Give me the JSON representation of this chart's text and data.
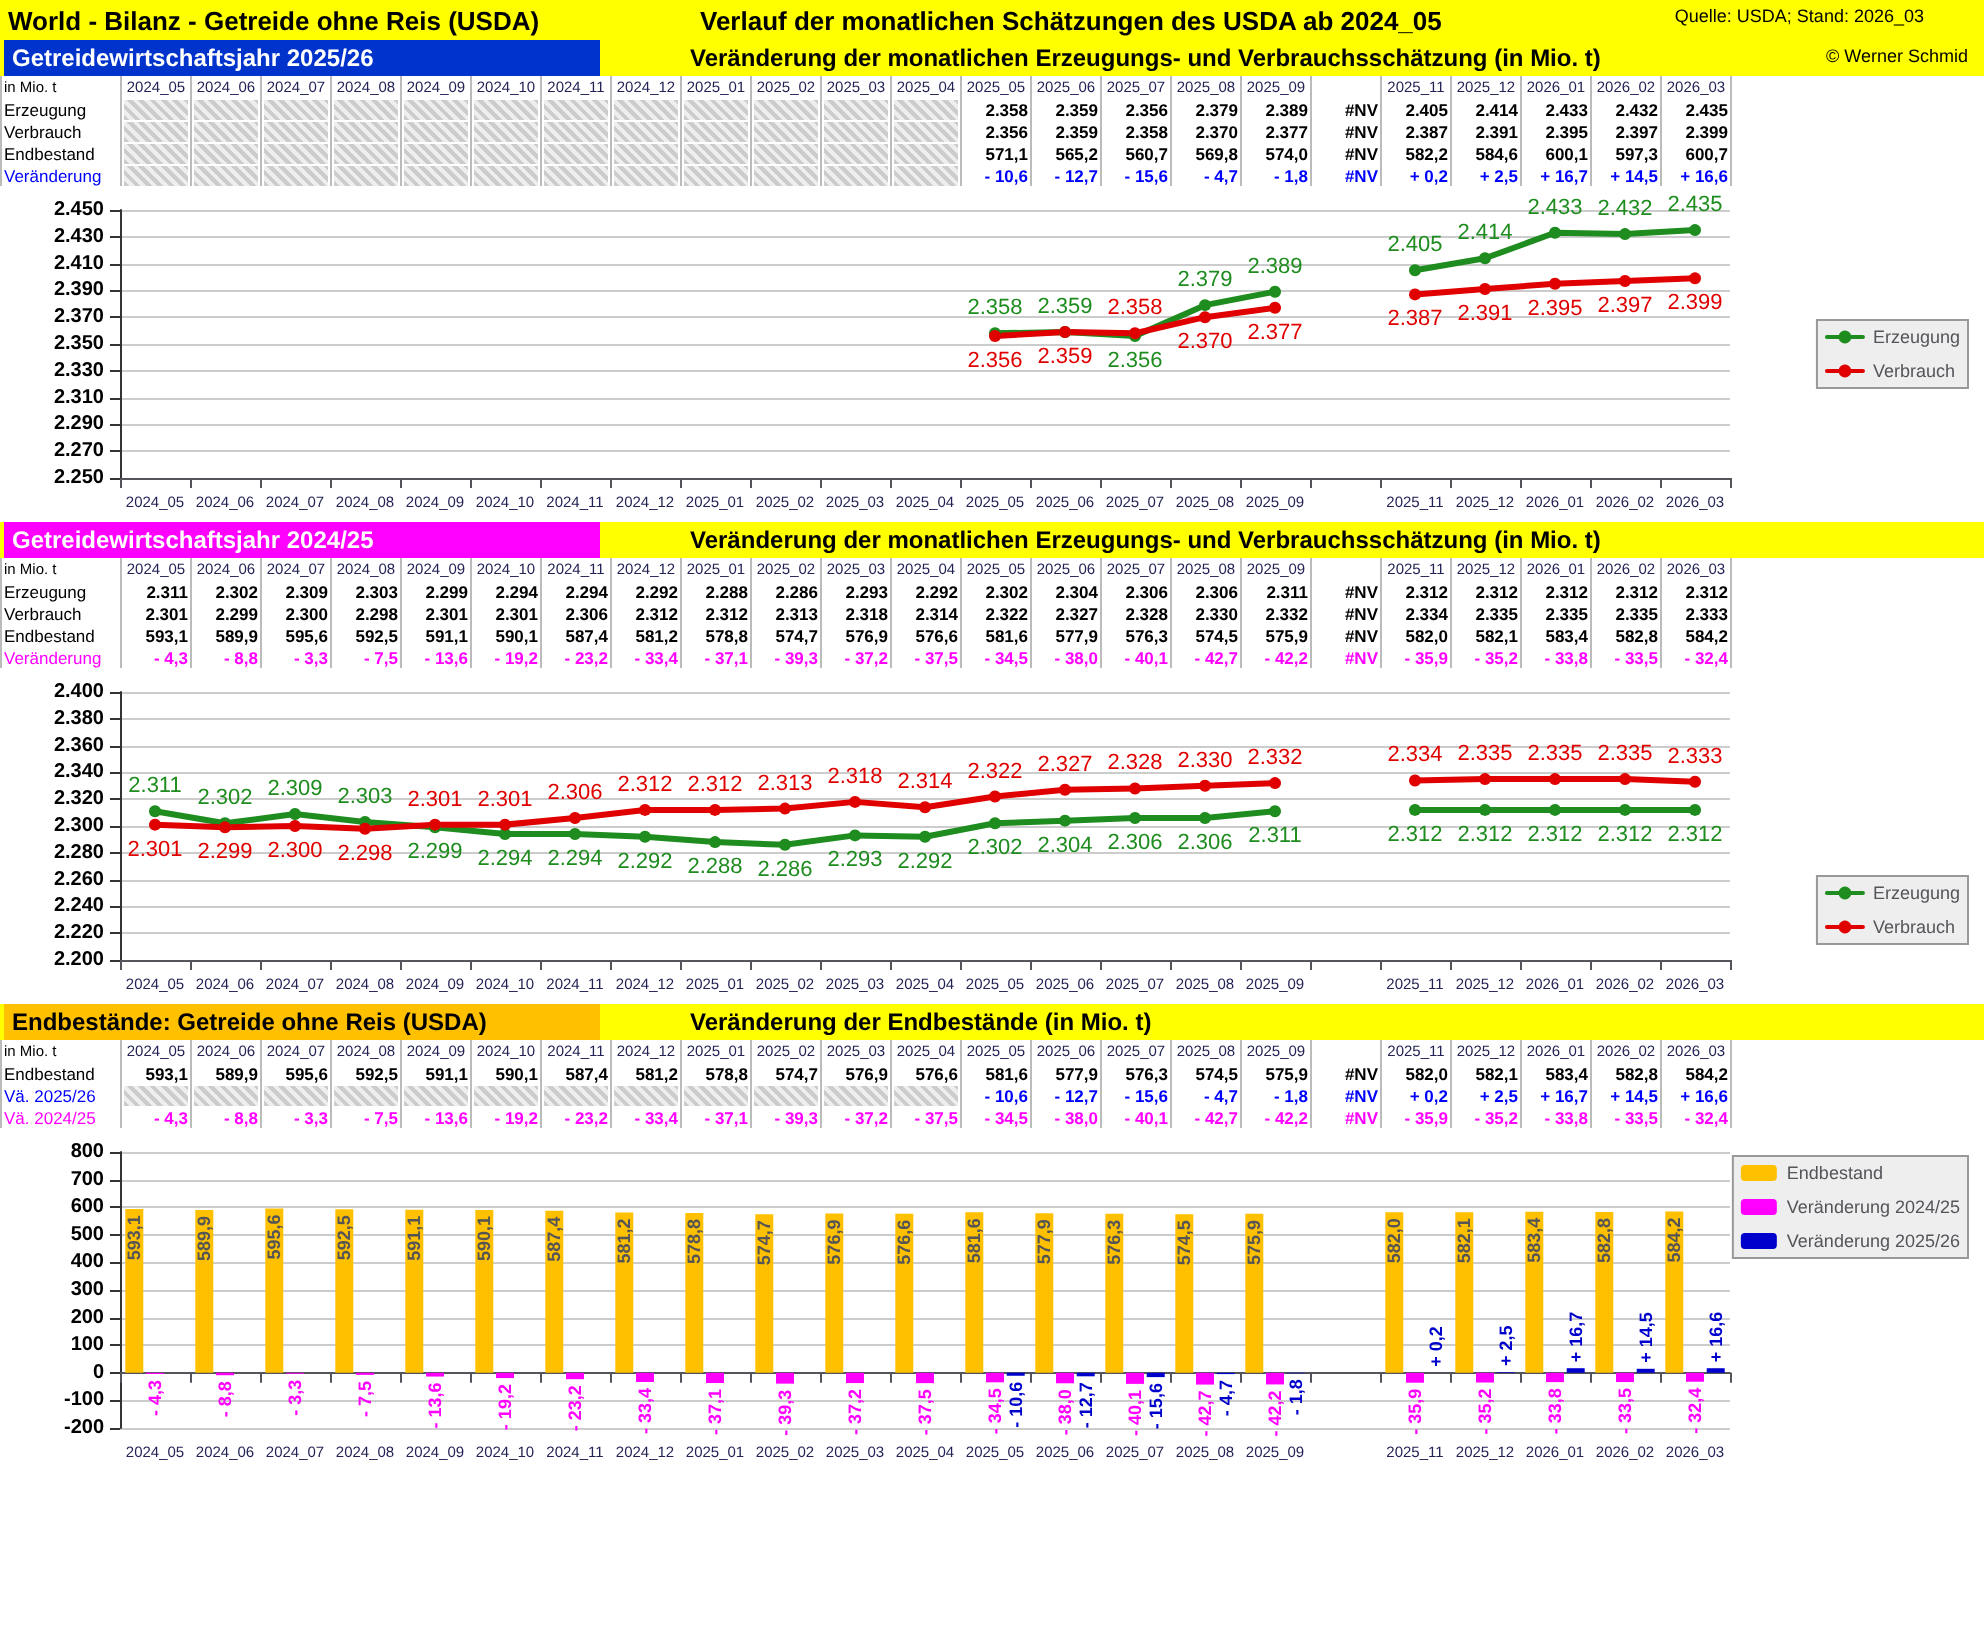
{
  "chart_data": [
    {
      "type": "other",
      "title": "Getreidewirtschaftsjahr 2025/26",
      "subtitle": "Veränderung der monatlichen Erzeugungs- und Verbrauchsschätzung (in Mio. t)",
      "ylabel": "in Mio. t",
      "annotations": [
        "World - Bilanz - Getreide ohne Reis (USDA)",
        "Verlauf der monatlichen Schätzungen des USDA ab 2024_05",
        "Quelle: USDA;  Stand: 2026_03",
        "© Werner Schmid"
      ],
      "categories": [
        "2024_05",
        "2024_06",
        "2024_07",
        "2024_08",
        "2024_09",
        "2024_10",
        "2024_11",
        "2024_12",
        "2025_01",
        "2025_02",
        "2025_03",
        "2025_04",
        "2025_05",
        "2025_06",
        "2025_07",
        "2025_08",
        "2025_09",
        null,
        "2025_11",
        "2025_12",
        "2026_01",
        "2026_02",
        "2026_03"
      ],
      "series": [
        {
          "name": "Erzeugung",
          "color": "#000000",
          "values": [
            null,
            null,
            null,
            null,
            null,
            null,
            null,
            null,
            null,
            null,
            null,
            null,
            2358,
            2359,
            2356,
            2379,
            2389,
            null,
            2405,
            2414,
            2433,
            2432,
            2435
          ],
          "value_labels": [
            null,
            null,
            null,
            null,
            null,
            null,
            null,
            null,
            null,
            null,
            null,
            null,
            "2.358",
            "2.359",
            "2.356",
            "2.379",
            "2.389",
            "#NV",
            "2.405",
            "2.414",
            "2.433",
            "2.432",
            "2.435"
          ]
        },
        {
          "name": "Verbrauch",
          "color": "#000000",
          "values": [
            null,
            null,
            null,
            null,
            null,
            null,
            null,
            null,
            null,
            null,
            null,
            null,
            2356,
            2359,
            2358,
            2370,
            2377,
            null,
            2387,
            2391,
            2395,
            2397,
            2399
          ],
          "value_labels": [
            null,
            null,
            null,
            null,
            null,
            null,
            null,
            null,
            null,
            null,
            null,
            null,
            "2.356",
            "2.359",
            "2.358",
            "2.370",
            "2.377",
            "#NV",
            "2.387",
            "2.391",
            "2.395",
            "2.397",
            "2.399"
          ]
        },
        {
          "name": "Endbestand",
          "color": "#000000",
          "values": [
            null,
            null,
            null,
            null,
            null,
            null,
            null,
            null,
            null,
            null,
            null,
            null,
            571.1,
            565.2,
            560.7,
            569.8,
            574.0,
            null,
            582.2,
            584.6,
            600.1,
            597.3,
            600.7
          ],
          "value_labels": [
            null,
            null,
            null,
            null,
            null,
            null,
            null,
            null,
            null,
            null,
            null,
            null,
            "571,1",
            "565,2",
            "560,7",
            "569,8",
            "574,0",
            "#NV",
            "582,2",
            "584,6",
            "600,1",
            "597,3",
            "600,7"
          ]
        },
        {
          "name": "Veränderung",
          "color": "#0000ff",
          "values": [
            null,
            null,
            null,
            null,
            null,
            null,
            null,
            null,
            null,
            null,
            null,
            null,
            -10.6,
            -12.7,
            -15.6,
            -4.7,
            -1.8,
            null,
            0.2,
            2.5,
            16.7,
            14.5,
            16.6
          ],
          "value_labels": [
            null,
            null,
            null,
            null,
            null,
            null,
            null,
            null,
            null,
            null,
            null,
            null,
            "- 10,6",
            "- 12,7",
            "- 15,6",
            "- 4,7",
            "- 1,8",
            "#NV",
            "+ 0,2",
            "+ 2,5",
            "+ 16,7",
            "+ 14,5",
            "+ 16,6"
          ]
        }
      ]
    },
    {
      "type": "line",
      "categories": [
        "2024_05",
        "2024_06",
        "2024_07",
        "2024_08",
        "2024_09",
        "2024_10",
        "2024_11",
        "2024_12",
        "2025_01",
        "2025_02",
        "2025_03",
        "2025_04",
        "2025_05",
        "2025_06",
        "2025_07",
        "2025_08",
        "2025_09",
        null,
        "2025_11",
        "2025_12",
        "2026_01",
        "2026_02",
        "2026_03"
      ],
      "series": [
        {
          "name": "Erzeugung",
          "color": "#1e8c1e",
          "values": [
            null,
            null,
            null,
            null,
            null,
            null,
            null,
            null,
            null,
            null,
            null,
            null,
            2358,
            2359,
            2356,
            2379,
            2389,
            null,
            2405,
            2414,
            2433,
            2432,
            2435
          ],
          "value_labels": [
            null,
            null,
            null,
            null,
            null,
            null,
            null,
            null,
            null,
            null,
            null,
            null,
            "2.358",
            "2.359",
            "2.356",
            "2.379",
            "2.389",
            null,
            "2.405",
            "2.414",
            "2.433",
            "2.432",
            "2.435"
          ]
        },
        {
          "name": "Verbrauch",
          "color": "#e00000",
          "values": [
            null,
            null,
            null,
            null,
            null,
            null,
            null,
            null,
            null,
            null,
            null,
            null,
            2356,
            2359,
            2358,
            2370,
            2377,
            null,
            2387,
            2391,
            2395,
            2397,
            2399
          ],
          "value_labels": [
            null,
            null,
            null,
            null,
            null,
            null,
            null,
            null,
            null,
            null,
            null,
            null,
            "2.356",
            "2.359",
            "2.358",
            "2.370",
            "2.377",
            null,
            "2.387",
            "2.391",
            "2.395",
            "2.397",
            "2.399"
          ]
        }
      ],
      "ylim": [
        2250,
        2450
      ],
      "yticks": [
        {
          "value": 2250,
          "label": "2.250"
        },
        {
          "value": 2270,
          "label": "2.270"
        },
        {
          "value": 2290,
          "label": "2.290"
        },
        {
          "value": 2310,
          "label": "2.310"
        },
        {
          "value": 2330,
          "label": "2.330"
        },
        {
          "value": 2350,
          "label": "2.350"
        },
        {
          "value": 2370,
          "label": "2.370"
        },
        {
          "value": 2390,
          "label": "2.390"
        },
        {
          "value": 2410,
          "label": "2.410"
        },
        {
          "value": 2430,
          "label": "2.430"
        },
        {
          "value": 2450,
          "label": "2.450"
        }
      ],
      "grid": "y",
      "legend": "right",
      "marker": "circle"
    },
    {
      "type": "other",
      "title": "Getreidewirtschaftsjahr 2024/25",
      "subtitle": "Veränderung der monatlichen Erzeugungs- und Verbrauchsschätzung (in Mio. t)",
      "ylabel": "in Mio. t",
      "categories": [
        "2024_05",
        "2024_06",
        "2024_07",
        "2024_08",
        "2024_09",
        "2024_10",
        "2024_11",
        "2024_12",
        "2025_01",
        "2025_02",
        "2025_03",
        "2025_04",
        "2025_05",
        "2025_06",
        "2025_07",
        "2025_08",
        "2025_09",
        null,
        "2025_11",
        "2025_12",
        "2026_01",
        "2026_02",
        "2026_03"
      ],
      "series": [
        {
          "name": "Erzeugung",
          "color": "#000000",
          "values": [
            2311,
            2302,
            2309,
            2303,
            2299,
            2294,
            2294,
            2292,
            2288,
            2286,
            2293,
            2292,
            2302,
            2304,
            2306,
            2306,
            2311,
            null,
            2312,
            2312,
            2312,
            2312,
            2312
          ],
          "value_labels": [
            "2.311",
            "2.302",
            "2.309",
            "2.303",
            "2.299",
            "2.294",
            "2.294",
            "2.292",
            "2.288",
            "2.286",
            "2.293",
            "2.292",
            "2.302",
            "2.304",
            "2.306",
            "2.306",
            "2.311",
            "#NV",
            "2.312",
            "2.312",
            "2.312",
            "2.312",
            "2.312"
          ]
        },
        {
          "name": "Verbrauch",
          "color": "#000000",
          "values": [
            2301,
            2299,
            2300,
            2298,
            2301,
            2301,
            2306,
            2312,
            2312,
            2313,
            2318,
            2314,
            2322,
            2327,
            2328,
            2330,
            2332,
            null,
            2334,
            2335,
            2335,
            2335,
            2333
          ],
          "value_labels": [
            "2.301",
            "2.299",
            "2.300",
            "2.298",
            "2.301",
            "2.301",
            "2.306",
            "2.312",
            "2.312",
            "2.313",
            "2.318",
            "2.314",
            "2.322",
            "2.327",
            "2.328",
            "2.330",
            "2.332",
            "#NV",
            "2.334",
            "2.335",
            "2.335",
            "2.335",
            "2.333"
          ]
        },
        {
          "name": "Endbestand",
          "color": "#000000",
          "values": [
            593.1,
            589.9,
            595.6,
            592.5,
            591.1,
            590.1,
            587.4,
            581.2,
            578.8,
            574.7,
            576.9,
            576.6,
            581.6,
            577.9,
            576.3,
            574.5,
            575.9,
            null,
            582.0,
            582.1,
            583.4,
            582.8,
            584.2
          ],
          "value_labels": [
            "593,1",
            "589,9",
            "595,6",
            "592,5",
            "591,1",
            "590,1",
            "587,4",
            "581,2",
            "578,8",
            "574,7",
            "576,9",
            "576,6",
            "581,6",
            "577,9",
            "576,3",
            "574,5",
            "575,9",
            "#NV",
            "582,0",
            "582,1",
            "583,4",
            "582,8",
            "584,2"
          ]
        },
        {
          "name": "Veränderung",
          "color": "#ff00ff",
          "values": [
            -4.3,
            -8.8,
            -3.3,
            -7.5,
            -13.6,
            -19.2,
            -23.2,
            -33.4,
            -37.1,
            -39.3,
            -37.2,
            -37.5,
            -34.5,
            -38.0,
            -40.1,
            -42.7,
            -42.2,
            null,
            -35.9,
            -35.2,
            -33.8,
            -33.5,
            -32.4
          ],
          "value_labels": [
            "- 4,3",
            "- 8,8",
            "- 3,3",
            "- 7,5",
            "- 13,6",
            "- 19,2",
            "- 23,2",
            "- 33,4",
            "- 37,1",
            "- 39,3",
            "- 37,2",
            "- 37,5",
            "- 34,5",
            "- 38,0",
            "- 40,1",
            "- 42,7",
            "- 42,2",
            "#NV",
            "- 35,9",
            "- 35,2",
            "- 33,8",
            "- 33,5",
            "- 32,4"
          ]
        }
      ]
    },
    {
      "type": "line",
      "categories": [
        "2024_05",
        "2024_06",
        "2024_07",
        "2024_08",
        "2024_09",
        "2024_10",
        "2024_11",
        "2024_12",
        "2025_01",
        "2025_02",
        "2025_03",
        "2025_04",
        "2025_05",
        "2025_06",
        "2025_07",
        "2025_08",
        "2025_09",
        null,
        "2025_11",
        "2025_12",
        "2026_01",
        "2026_02",
        "2026_03"
      ],
      "series": [
        {
          "name": "Erzeugung",
          "color": "#1e8c1e",
          "values": [
            2311,
            2302,
            2309,
            2303,
            2299,
            2294,
            2294,
            2292,
            2288,
            2286,
            2293,
            2292,
            2302,
            2304,
            2306,
            2306,
            2311,
            null,
            2312,
            2312,
            2312,
            2312,
            2312
          ],
          "value_labels": [
            "2.311",
            "2.302",
            "2.309",
            "2.303",
            "2.299",
            "2.294",
            "2.294",
            "2.292",
            "2.288",
            "2.286",
            "2.293",
            "2.292",
            "2.302",
            "2.304",
            "2.306",
            "2.306",
            "2.311",
            null,
            "2.312",
            "2.312",
            "2.312",
            "2.312",
            "2.312"
          ]
        },
        {
          "name": "Verbrauch",
          "color": "#e00000",
          "values": [
            2301,
            2299,
            2300,
            2298,
            2301,
            2301,
            2306,
            2312,
            2312,
            2313,
            2318,
            2314,
            2322,
            2327,
            2328,
            2330,
            2332,
            null,
            2334,
            2335,
            2335,
            2335,
            2333
          ],
          "value_labels": [
            "2.301",
            "2.299",
            "2.300",
            "2.298",
            "2.301",
            "2.301",
            "2.306",
            "2.312",
            "2.312",
            "2.313",
            "2.318",
            "2.314",
            "2.322",
            "2.327",
            "2.328",
            "2.330",
            "2.332",
            null,
            "2.334",
            "2.335",
            "2.335",
            "2.335",
            "2.333"
          ]
        }
      ],
      "ylim": [
        2200,
        2400
      ],
      "yticks": [
        {
          "value": 2200,
          "label": "2.200"
        },
        {
          "value": 2220,
          "label": "2.220"
        },
        {
          "value": 2240,
          "label": "2.240"
        },
        {
          "value": 2260,
          "label": "2.260"
        },
        {
          "value": 2280,
          "label": "2.280"
        },
        {
          "value": 2300,
          "label": "2.300"
        },
        {
          "value": 2320,
          "label": "2.320"
        },
        {
          "value": 2340,
          "label": "2.340"
        },
        {
          "value": 2360,
          "label": "2.360"
        },
        {
          "value": 2380,
          "label": "2.380"
        },
        {
          "value": 2400,
          "label": "2.400"
        }
      ],
      "grid": "y",
      "legend": "bottom right",
      "marker": "circle"
    },
    {
      "type": "other",
      "title": "Endbestände: Getreide ohne Reis (USDA)",
      "subtitle": "Veränderung der Endbestände (in Mio. t)",
      "ylabel": "in Mio. t",
      "categories": [
        "2024_05",
        "2024_06",
        "2024_07",
        "2024_08",
        "2024_09",
        "2024_10",
        "2024_11",
        "2024_12",
        "2025_01",
        "2025_02",
        "2025_03",
        "2025_04",
        "2025_05",
        "2025_06",
        "2025_07",
        "2025_08",
        "2025_09",
        null,
        "2025_11",
        "2025_12",
        "2026_01",
        "2026_02",
        "2026_03"
      ],
      "series": [
        {
          "name": "Endbestand",
          "color": "#000000",
          "values": [
            593.1,
            589.9,
            595.6,
            592.5,
            591.1,
            590.1,
            587.4,
            581.2,
            578.8,
            574.7,
            576.9,
            576.6,
            581.6,
            577.9,
            576.3,
            574.5,
            575.9,
            null,
            582.0,
            582.1,
            583.4,
            582.8,
            584.2
          ],
          "value_labels": [
            "593,1",
            "589,9",
            "595,6",
            "592,5",
            "591,1",
            "590,1",
            "587,4",
            "581,2",
            "578,8",
            "574,7",
            "576,9",
            "576,6",
            "581,6",
            "577,9",
            "576,3",
            "574,5",
            "575,9",
            "#NV",
            "582,0",
            "582,1",
            "583,4",
            "582,8",
            "584,2"
          ]
        },
        {
          "name": "Vä. 2025/26",
          "color": "#0000ff",
          "values": [
            null,
            null,
            null,
            null,
            null,
            null,
            null,
            null,
            null,
            null,
            null,
            null,
            -10.6,
            -12.7,
            -15.6,
            -4.7,
            -1.8,
            null,
            0.2,
            2.5,
            16.7,
            14.5,
            16.6
          ],
          "value_labels": [
            null,
            null,
            null,
            null,
            null,
            null,
            null,
            null,
            null,
            null,
            null,
            null,
            "- 10,6",
            "- 12,7",
            "- 15,6",
            "- 4,7",
            "- 1,8",
            "#NV",
            "+ 0,2",
            "+ 2,5",
            "+ 16,7",
            "+ 14,5",
            "+ 16,6"
          ]
        },
        {
          "name": "Vä. 2024/25",
          "color": "#ff00ff",
          "values": [
            -4.3,
            -8.8,
            -3.3,
            -7.5,
            -13.6,
            -19.2,
            -23.2,
            -33.4,
            -37.1,
            -39.3,
            -37.2,
            -37.5,
            -34.5,
            -38.0,
            -40.1,
            -42.7,
            -42.2,
            null,
            -35.9,
            -35.2,
            -33.8,
            -33.5,
            -32.4
          ],
          "value_labels": [
            "- 4,3",
            "- 8,8",
            "- 3,3",
            "- 7,5",
            "- 13,6",
            "- 19,2",
            "- 23,2",
            "- 33,4",
            "- 37,1",
            "- 39,3",
            "- 37,2",
            "- 37,5",
            "- 34,5",
            "- 38,0",
            "- 40,1",
            "- 42,7",
            "- 42,2",
            "#NV",
            "- 35,9",
            "- 35,2",
            "- 33,8",
            "- 33,5",
            "- 32,4"
          ]
        }
      ]
    },
    {
      "type": "bar",
      "categories": [
        "2024_05",
        "2024_06",
        "2024_07",
        "2024_08",
        "2024_09",
        "2024_10",
        "2024_11",
        "2024_12",
        "2025_01",
        "2025_02",
        "2025_03",
        "2025_04",
        "2025_05",
        "2025_06",
        "2025_07",
        "2025_08",
        "2025_09",
        null,
        "2025_11",
        "2025_12",
        "2026_01",
        "2026_02",
        "2026_03"
      ],
      "series": [
        {
          "name": "Endbestand",
          "color": "#ffc000",
          "values": [
            593.1,
            589.9,
            595.6,
            592.5,
            591.1,
            590.1,
            587.4,
            581.2,
            578.8,
            574.7,
            576.9,
            576.6,
            581.6,
            577.9,
            576.3,
            574.5,
            575.9,
            null,
            582.0,
            582.1,
            583.4,
            582.8,
            584.2
          ],
          "value_labels": [
            "593,1",
            "589,9",
            "595,6",
            "592,5",
            "591,1",
            "590,1",
            "587,4",
            "581,2",
            "578,8",
            "574,7",
            "576,9",
            "576,6",
            "581,6",
            "577,9",
            "576,3",
            "574,5",
            "575,9",
            null,
            "582,0",
            "582,1",
            "583,4",
            "582,8",
            "584,2"
          ]
        },
        {
          "name": "Veränderung 2024/25",
          "color": "#ff00ff",
          "values": [
            -4.3,
            -8.8,
            -3.3,
            -7.5,
            -13.6,
            -19.2,
            -23.2,
            -33.4,
            -37.1,
            -39.3,
            -37.2,
            -37.5,
            -34.5,
            -38.0,
            -40.1,
            -42.7,
            -42.2,
            null,
            -35.9,
            -35.2,
            -33.8,
            -33.5,
            -32.4
          ],
          "value_labels": [
            "- 4,3",
            "- 8,8",
            "- 3,3",
            "- 7,5",
            "- 13,6",
            "- 19,2",
            "- 23,2",
            "- 33,4",
            "- 37,1",
            "- 39,3",
            "- 37,2",
            "- 37,5",
            "- 34,5",
            "- 38,0",
            "- 40,1",
            "- 42,7",
            "- 42,2",
            null,
            "- 35,9",
            "- 35,2",
            "- 33,8",
            "- 33,5",
            "- 32,4"
          ]
        },
        {
          "name": "Veränderung 2025/26",
          "color": "#0000cc",
          "values": [
            null,
            null,
            null,
            null,
            null,
            null,
            null,
            null,
            null,
            null,
            null,
            null,
            -10.6,
            -12.7,
            -15.6,
            -4.7,
            -1.8,
            null,
            0.2,
            2.5,
            16.7,
            14.5,
            16.6
          ],
          "value_labels": [
            null,
            null,
            null,
            null,
            null,
            null,
            null,
            null,
            null,
            null,
            null,
            null,
            "- 10,6",
            "- 12,7",
            "- 15,6",
            "- 4,7",
            "- 1,8",
            null,
            "+ 0,2",
            "+ 2,5",
            "+ 16,7",
            "+ 14,5",
            "+ 16,6"
          ]
        }
      ],
      "ylim": [
        -200,
        800
      ],
      "yticks": [
        -200,
        -100,
        0,
        100,
        200,
        300,
        400,
        500,
        600,
        700,
        800
      ],
      "grid": "y",
      "legend": "top right"
    }
  ]
}
